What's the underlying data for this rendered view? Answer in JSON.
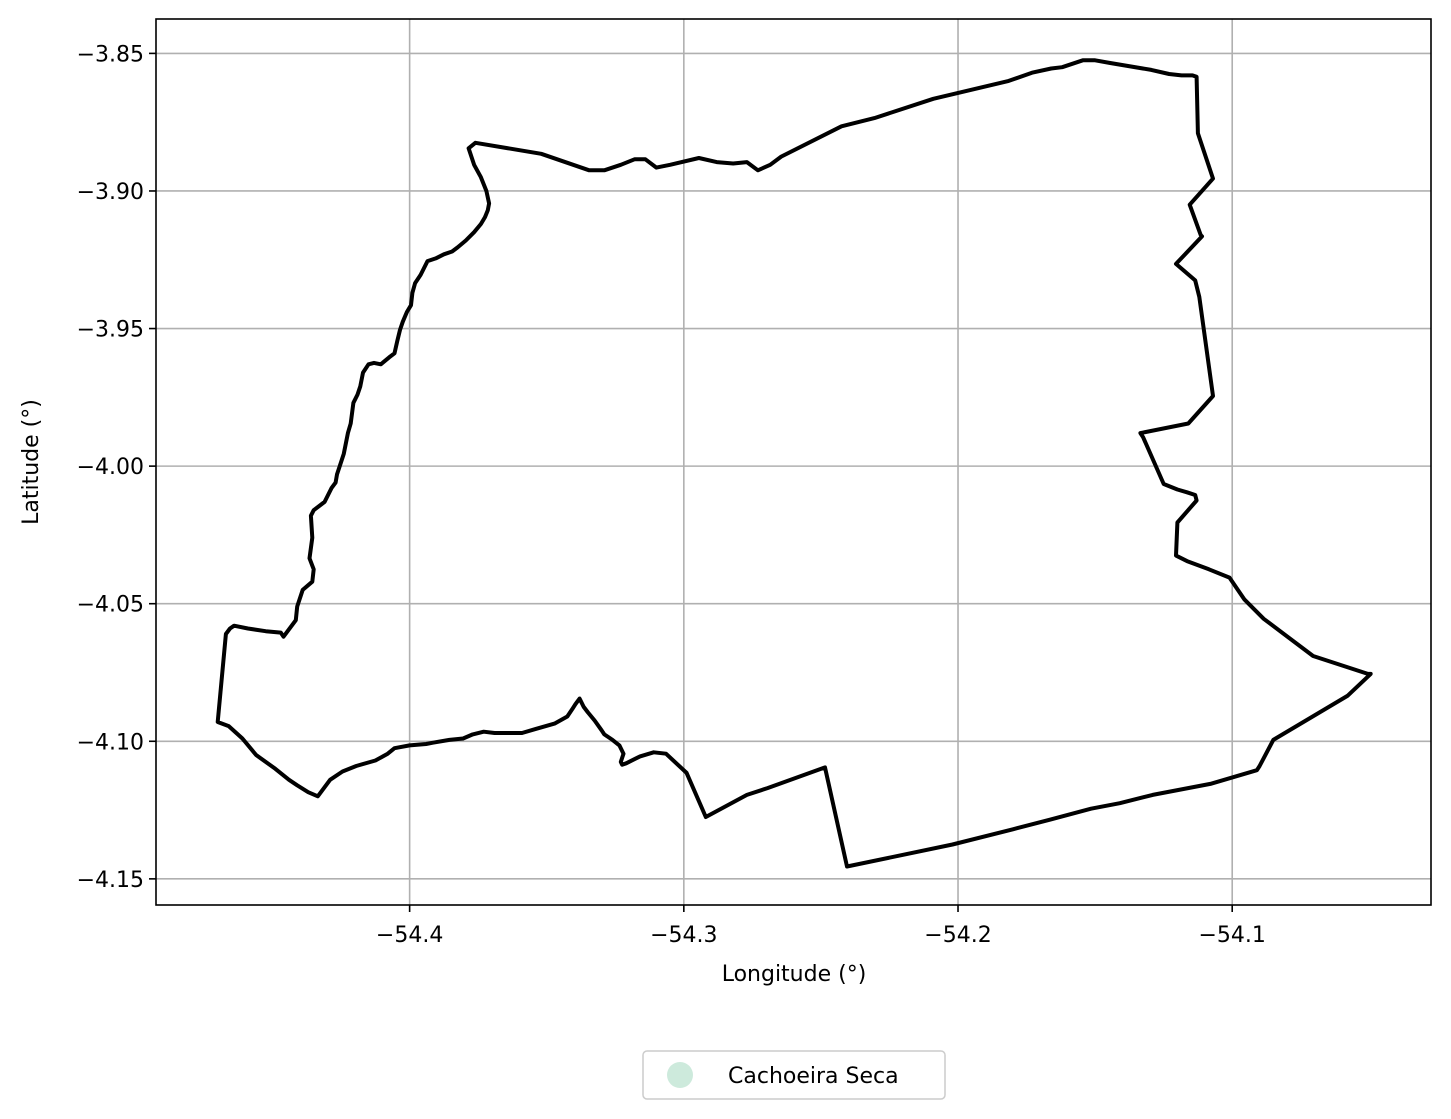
{
  "chart_data": {
    "type": "map",
    "xlabel": "Longitude (°)",
    "ylabel": "Latitude (°)",
    "xlim": [
      -54.4925,
      -54.0275
    ],
    "ylim": [
      -4.1595,
      -3.8375
    ],
    "grid": true,
    "x_ticks": [
      {
        "value": -54.4,
        "label": "−54.4"
      },
      {
        "value": -54.3,
        "label": "−54.3"
      },
      {
        "value": -54.2,
        "label": "−54.2"
      },
      {
        "value": -54.1,
        "label": "−54.1"
      }
    ],
    "y_ticks": [
      {
        "value": -3.85,
        "label": "−3.85"
      },
      {
        "value": -3.9,
        "label": "−3.90"
      },
      {
        "value": -3.95,
        "label": "−3.95"
      },
      {
        "value": -4.0,
        "label": "−4.00"
      },
      {
        "value": -4.05,
        "label": "−4.05"
      },
      {
        "value": -4.1,
        "label": "−4.10"
      },
      {
        "value": -4.15,
        "label": "−4.15"
      }
    ],
    "legend": {
      "placement": "bottom-center",
      "entries": [
        {
          "label": "Cachoeira Seca",
          "color": "#cdeadc",
          "marker": "circle"
        }
      ]
    },
    "series": [
      {
        "name": "Cachoeira Seca",
        "outline_color": "#000000",
        "fill": "none",
        "boundary": [
          [
            -54.3785,
            -3.8845
          ],
          [
            -54.376,
            -3.8825
          ],
          [
            -54.352,
            -3.8865
          ],
          [
            -54.3345,
            -3.8925
          ],
          [
            -54.329,
            -3.8925
          ],
          [
            -54.323,
            -3.8905
          ],
          [
            -54.318,
            -3.8885
          ],
          [
            -54.314,
            -3.8885
          ],
          [
            -54.31,
            -3.8915
          ],
          [
            -54.305,
            -3.8905
          ],
          [
            -54.2945,
            -3.888
          ],
          [
            -54.288,
            -3.8895
          ],
          [
            -54.282,
            -3.89
          ],
          [
            -54.277,
            -3.8895
          ],
          [
            -54.273,
            -3.8925
          ],
          [
            -54.2685,
            -3.8905
          ],
          [
            -54.2645,
            -3.8875
          ],
          [
            -54.2425,
            -3.8765
          ],
          [
            -54.2305,
            -3.8735
          ],
          [
            -54.209,
            -3.8665
          ],
          [
            -54.1815,
            -3.86
          ],
          [
            -54.173,
            -3.857
          ],
          [
            -54.166,
            -3.8555
          ],
          [
            -54.162,
            -3.855
          ],
          [
            -54.1545,
            -3.8525
          ],
          [
            -54.15,
            -3.8525
          ],
          [
            -54.1445,
            -3.8535
          ],
          [
            -54.1295,
            -3.856
          ],
          [
            -54.123,
            -3.8575
          ],
          [
            -54.1185,
            -3.858
          ],
          [
            -54.1145,
            -3.858
          ],
          [
            -54.113,
            -3.8585
          ],
          [
            -54.1125,
            -3.879
          ],
          [
            -54.107,
            -3.8955
          ],
          [
            -54.1155,
            -3.905
          ],
          [
            -54.1115,
            -3.916
          ],
          [
            -54.111,
            -3.9165
          ],
          [
            -54.1205,
            -3.9265
          ],
          [
            -54.1135,
            -3.9325
          ],
          [
            -54.112,
            -3.9385
          ],
          [
            -54.107,
            -3.9745
          ],
          [
            -54.116,
            -3.9845
          ],
          [
            -54.1335,
            -3.988
          ],
          [
            -54.1325,
            -3.9895
          ],
          [
            -54.125,
            -4.0065
          ],
          [
            -54.12,
            -4.0085
          ],
          [
            -54.1165,
            -4.0095
          ],
          [
            -54.1135,
            -4.0105
          ],
          [
            -54.113,
            -4.0125
          ],
          [
            -54.12,
            -4.0205
          ],
          [
            -54.1205,
            -4.0325
          ],
          [
            -54.1165,
            -4.0345
          ],
          [
            -54.1085,
            -4.0375
          ],
          [
            -54.101,
            -4.0405
          ],
          [
            -54.0955,
            -4.0485
          ],
          [
            -54.0885,
            -4.0555
          ],
          [
            -54.0705,
            -4.069
          ],
          [
            -54.0505,
            -4.0755
          ],
          [
            -54.0495,
            -4.0755
          ],
          [
            -54.058,
            -4.0835
          ],
          [
            -54.085,
            -4.0995
          ],
          [
            -54.09,
            -4.109
          ],
          [
            -54.091,
            -4.1105
          ],
          [
            -54.108,
            -4.1155
          ],
          [
            -54.129,
            -4.1195
          ],
          [
            -54.141,
            -4.1225
          ],
          [
            -54.1515,
            -4.1245
          ],
          [
            -54.1665,
            -4.1285
          ],
          [
            -54.18,
            -4.132
          ],
          [
            -54.202,
            -4.1375
          ],
          [
            -54.2405,
            -4.1455
          ],
          [
            -54.2485,
            -4.1095
          ],
          [
            -54.2695,
            -4.117
          ],
          [
            -54.277,
            -4.1195
          ],
          [
            -54.292,
            -4.1275
          ],
          [
            -54.299,
            -4.1115
          ],
          [
            -54.3065,
            -4.1045
          ],
          [
            -54.311,
            -4.104
          ],
          [
            -54.316,
            -4.1055
          ],
          [
            -54.321,
            -4.108
          ],
          [
            -54.3225,
            -4.1085
          ],
          [
            -54.323,
            -4.1075
          ],
          [
            -54.322,
            -4.1045
          ],
          [
            -54.3235,
            -4.1015
          ],
          [
            -54.326,
            -4.0995
          ],
          [
            -54.329,
            -4.0975
          ],
          [
            -54.33,
            -4.096
          ],
          [
            -54.3325,
            -4.0925
          ],
          [
            -54.335,
            -4.0895
          ],
          [
            -54.3365,
            -4.0875
          ],
          [
            -54.338,
            -4.0845
          ],
          [
            -54.3395,
            -4.0865
          ],
          [
            -54.3405,
            -4.088
          ],
          [
            -54.3425,
            -4.091
          ],
          [
            -54.347,
            -4.0935
          ],
          [
            -54.354,
            -4.0955
          ],
          [
            -54.359,
            -4.097
          ],
          [
            -54.369,
            -4.097
          ],
          [
            -54.373,
            -4.0965
          ],
          [
            -54.377,
            -4.0975
          ],
          [
            -54.3805,
            -4.099
          ],
          [
            -54.3855,
            -4.0995
          ],
          [
            -54.3915,
            -4.1005
          ],
          [
            -54.394,
            -4.101
          ],
          [
            -54.4,
            -4.1015
          ],
          [
            -54.4055,
            -4.1025
          ],
          [
            -54.408,
            -4.1045
          ],
          [
            -54.4125,
            -4.107
          ],
          [
            -54.4195,
            -4.109
          ],
          [
            -54.4245,
            -4.111
          ],
          [
            -54.429,
            -4.114
          ],
          [
            -54.432,
            -4.118
          ],
          [
            -54.4335,
            -4.12
          ],
          [
            -54.437,
            -4.1185
          ],
          [
            -54.441,
            -4.116
          ],
          [
            -54.444,
            -4.114
          ],
          [
            -54.449,
            -4.11
          ],
          [
            -54.456,
            -4.105
          ],
          [
            -54.461,
            -4.099
          ],
          [
            -54.466,
            -4.0945
          ],
          [
            -54.47,
            -4.093
          ],
          [
            -54.467,
            -4.061
          ],
          [
            -54.4655,
            -4.059
          ],
          [
            -54.464,
            -4.058
          ],
          [
            -54.459,
            -4.059
          ],
          [
            -54.4525,
            -4.06
          ],
          [
            -54.447,
            -4.0605
          ],
          [
            -54.446,
            -4.062
          ],
          [
            -54.4415,
            -4.056
          ],
          [
            -54.441,
            -4.051
          ],
          [
            -54.439,
            -4.045
          ],
          [
            -54.4355,
            -4.042
          ],
          [
            -54.435,
            -4.0375
          ],
          [
            -54.4365,
            -4.0335
          ],
          [
            -54.4355,
            -4.026
          ],
          [
            -54.436,
            -4.018
          ],
          [
            -54.435,
            -4.016
          ],
          [
            -54.431,
            -4.013
          ],
          [
            -54.4285,
            -4.008
          ],
          [
            -54.427,
            -4.006
          ],
          [
            -54.4265,
            -4.003
          ],
          [
            -54.425,
            -3.9985
          ],
          [
            -54.424,
            -3.9955
          ],
          [
            -54.4225,
            -3.988
          ],
          [
            -54.4215,
            -3.9845
          ],
          [
            -54.4205,
            -3.977
          ],
          [
            -54.419,
            -3.974
          ],
          [
            -54.418,
            -3.971
          ],
          [
            -54.417,
            -3.966
          ],
          [
            -54.415,
            -3.963
          ],
          [
            -54.413,
            -3.9625
          ],
          [
            -54.4105,
            -3.963
          ],
          [
            -54.4075,
            -3.9605
          ],
          [
            -54.4055,
            -3.959
          ],
          [
            -54.4045,
            -3.9545
          ],
          [
            -54.4035,
            -3.9505
          ],
          [
            -54.4025,
            -3.9475
          ],
          [
            -54.401,
            -3.944
          ],
          [
            -54.3995,
            -3.9415
          ],
          [
            -54.399,
            -3.937
          ],
          [
            -54.398,
            -3.9335
          ],
          [
            -54.396,
            -3.9305
          ],
          [
            -54.3935,
            -3.9255
          ],
          [
            -54.3905,
            -3.9245
          ],
          [
            -54.3875,
            -3.923
          ],
          [
            -54.3845,
            -3.922
          ],
          [
            -54.3825,
            -3.9205
          ],
          [
            -54.3795,
            -3.918
          ],
          [
            -54.3765,
            -3.915
          ],
          [
            -54.374,
            -3.912
          ],
          [
            -54.3725,
            -3.9095
          ],
          [
            -54.3715,
            -3.907
          ],
          [
            -54.371,
            -3.9045
          ],
          [
            -54.372,
            -3.9
          ],
          [
            -54.374,
            -3.895
          ],
          [
            -54.3765,
            -3.8905
          ],
          [
            -54.3785,
            -3.8845
          ]
        ]
      }
    ]
  }
}
